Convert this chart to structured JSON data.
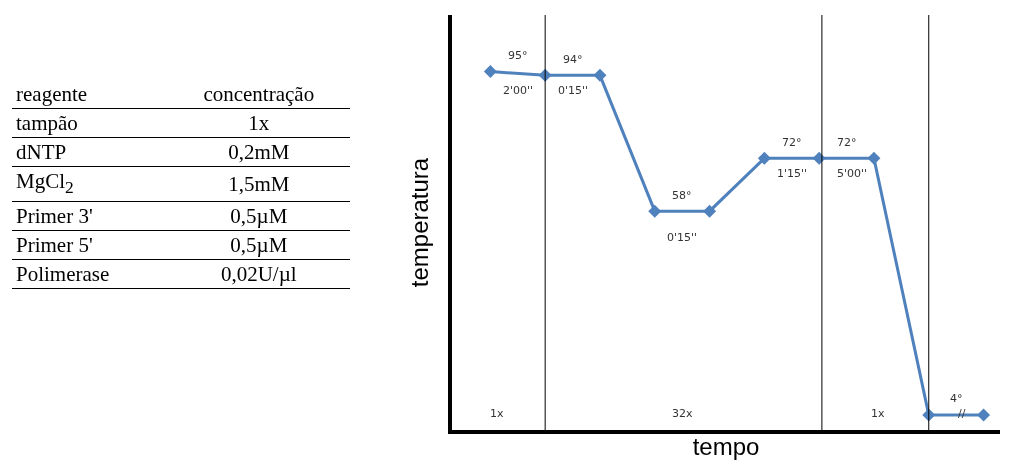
{
  "chart_data": [
    {
      "type": "other",
      "annotations": [
        "reagente",
        "concentração",
        "tampão",
        "1x",
        "dNTP",
        "0,2mM",
        "MgCl$_{2}$",
        "1,5mM",
        "Primer 3'",
        "0,5µM",
        "Primer 5'",
        "0,5µM",
        "Polimerase",
        "0,02U/µl"
      ]
    },
    {
      "type": "line",
      "categories": [
        null,
        null,
        null,
        null,
        null,
        null,
        null,
        null,
        null,
        null
      ],
      "values": [
        95,
        94,
        94,
        58,
        58,
        72,
        72,
        72,
        4,
        4
      ],
      "value_labels": [
        "95°",
        "94°",
        null,
        "58°",
        null,
        "72°",
        "72°",
        null,
        "4°",
        null
      ],
      "color": "#4f81bd",
      "marker": "diamond",
      "ylim": [
        0,
        110
      ],
      "xlabel": "tempo",
      "ylabel": "temperatura",
      "annotations": [
        "2'00''",
        "0'15''",
        "0'15''",
        "1'15''",
        "5'00''",
        "//",
        "1x",
        "32x",
        "1x"
      ]
    }
  ]
}
